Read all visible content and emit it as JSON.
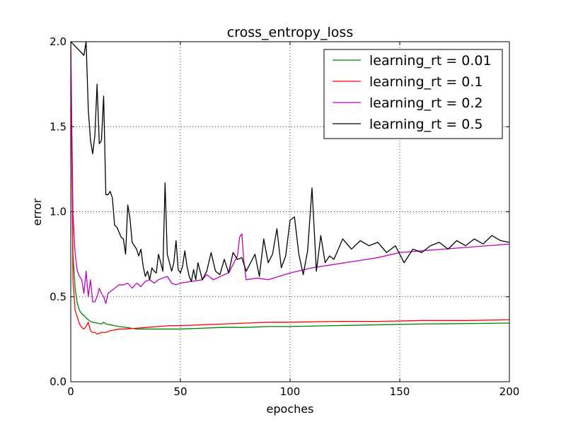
{
  "chart_data": {
    "type": "line",
    "title": "cross_entropy_loss",
    "xlabel": "epoches",
    "ylabel": "error",
    "xlim": [
      0,
      200
    ],
    "ylim": [
      0.0,
      2.0
    ],
    "xticks": [
      0,
      50,
      100,
      150,
      200
    ],
    "yticks": [
      0.0,
      0.5,
      1.0,
      1.5,
      2.0
    ],
    "xtick_labels": [
      "0",
      "50",
      "100",
      "150",
      "200"
    ],
    "ytick_labels": [
      "0.0",
      "0.5",
      "1.0",
      "1.5",
      "2.0"
    ],
    "grid": true,
    "legend_position": "top-right",
    "series": [
      {
        "name": "learning_rt = 0.01",
        "color": "#008000",
        "points": [
          [
            0,
            1.9
          ],
          [
            1,
            0.75
          ],
          [
            2,
            0.55
          ],
          [
            3,
            0.46
          ],
          [
            4,
            0.42
          ],
          [
            5,
            0.4
          ],
          [
            6,
            0.39
          ],
          [
            7,
            0.375
          ],
          [
            8,
            0.365
          ],
          [
            9,
            0.355
          ],
          [
            10,
            0.35
          ],
          [
            12,
            0.345
          ],
          [
            14,
            0.34
          ],
          [
            15,
            0.35
          ],
          [
            16,
            0.34
          ],
          [
            18,
            0.335
          ],
          [
            20,
            0.33
          ],
          [
            22,
            0.325
          ],
          [
            25,
            0.32
          ],
          [
            30,
            0.31
          ],
          [
            35,
            0.31
          ],
          [
            40,
            0.31
          ],
          [
            45,
            0.31
          ],
          [
            50,
            0.31
          ],
          [
            60,
            0.315
          ],
          [
            70,
            0.32
          ],
          [
            80,
            0.32
          ],
          [
            90,
            0.325
          ],
          [
            100,
            0.325
          ],
          [
            120,
            0.33
          ],
          [
            140,
            0.335
          ],
          [
            160,
            0.34
          ],
          [
            180,
            0.342
          ],
          [
            200,
            0.345
          ]
        ]
      },
      {
        "name": "learning_rt = 0.1",
        "color": "#ff0000",
        "points": [
          [
            0,
            2.0
          ],
          [
            1,
            0.6
          ],
          [
            2,
            0.42
          ],
          [
            3,
            0.38
          ],
          [
            4,
            0.34
          ],
          [
            5,
            0.32
          ],
          [
            6,
            0.31
          ],
          [
            7,
            0.325
          ],
          [
            8,
            0.35
          ],
          [
            9,
            0.3
          ],
          [
            10,
            0.29
          ],
          [
            11,
            0.29
          ],
          [
            12,
            0.28
          ],
          [
            13,
            0.285
          ],
          [
            14,
            0.29
          ],
          [
            16,
            0.29
          ],
          [
            18,
            0.3
          ],
          [
            20,
            0.305
          ],
          [
            22,
            0.31
          ],
          [
            25,
            0.31
          ],
          [
            30,
            0.315
          ],
          [
            35,
            0.32
          ],
          [
            40,
            0.325
          ],
          [
            45,
            0.33
          ],
          [
            50,
            0.33
          ],
          [
            60,
            0.335
          ],
          [
            70,
            0.34
          ],
          [
            80,
            0.345
          ],
          [
            90,
            0.35
          ],
          [
            100,
            0.35
          ],
          [
            120,
            0.355
          ],
          [
            140,
            0.355
          ],
          [
            160,
            0.36
          ],
          [
            180,
            0.36
          ],
          [
            200,
            0.365
          ]
        ]
      },
      {
        "name": "learning_rt = 0.2",
        "color": "#bf00bf",
        "points": [
          [
            0,
            2.0
          ],
          [
            1,
            1.0
          ],
          [
            2,
            0.75
          ],
          [
            3,
            0.65
          ],
          [
            4,
            0.62
          ],
          [
            5,
            0.6
          ],
          [
            6,
            0.52
          ],
          [
            7,
            0.65
          ],
          [
            8,
            0.5
          ],
          [
            9,
            0.6
          ],
          [
            10,
            0.47
          ],
          [
            11,
            0.47
          ],
          [
            12,
            0.5
          ],
          [
            13,
            0.55
          ],
          [
            14,
            0.52
          ],
          [
            15,
            0.5
          ],
          [
            16,
            0.46
          ],
          [
            17,
            0.52
          ],
          [
            18,
            0.53
          ],
          [
            20,
            0.55
          ],
          [
            22,
            0.57
          ],
          [
            24,
            0.57
          ],
          [
            26,
            0.58
          ],
          [
            28,
            0.55
          ],
          [
            30,
            0.58
          ],
          [
            32,
            0.56
          ],
          [
            34,
            0.59
          ],
          [
            36,
            0.6
          ],
          [
            38,
            0.58
          ],
          [
            40,
            0.6
          ],
          [
            42,
            0.61
          ],
          [
            44,
            0.62
          ],
          [
            46,
            0.58
          ],
          [
            48,
            0.57
          ],
          [
            50,
            0.58
          ],
          [
            55,
            0.59
          ],
          [
            60,
            0.6
          ],
          [
            62,
            0.63
          ],
          [
            65,
            0.6
          ],
          [
            70,
            0.63
          ],
          [
            72,
            0.64
          ],
          [
            74,
            0.69
          ],
          [
            76,
            0.74
          ],
          [
            77,
            0.85
          ],
          [
            78,
            0.87
          ],
          [
            79,
            0.7
          ],
          [
            80,
            0.6
          ],
          [
            85,
            0.61
          ],
          [
            90,
            0.6
          ],
          [
            95,
            0.62
          ],
          [
            100,
            0.64
          ],
          [
            110,
            0.67
          ],
          [
            120,
            0.69
          ],
          [
            130,
            0.71
          ],
          [
            140,
            0.73
          ],
          [
            150,
            0.76
          ],
          [
            160,
            0.77
          ],
          [
            170,
            0.78
          ],
          [
            180,
            0.79
          ],
          [
            190,
            0.8
          ],
          [
            200,
            0.81
          ]
        ]
      },
      {
        "name": "learning_rt = 0.5",
        "color": "#000000",
        "points": [
          [
            0,
            2.0
          ],
          [
            6,
            1.92
          ],
          [
            7,
            2.0
          ],
          [
            8,
            1.6
          ],
          [
            9,
            1.42
          ],
          [
            10,
            1.34
          ],
          [
            11,
            1.45
          ],
          [
            12,
            1.75
          ],
          [
            13,
            1.4
          ],
          [
            14,
            1.42
          ],
          [
            15,
            1.68
          ],
          [
            16,
            1.1
          ],
          [
            17,
            1.1
          ],
          [
            18,
            1.12
          ],
          [
            19,
            1.08
          ],
          [
            20,
            0.92
          ],
          [
            21,
            0.91
          ],
          [
            22,
            0.88
          ],
          [
            23,
            0.85
          ],
          [
            24,
            0.84
          ],
          [
            25,
            0.75
          ],
          [
            26,
            1.04
          ],
          [
            27,
            0.96
          ],
          [
            28,
            0.82
          ],
          [
            29,
            0.8
          ],
          [
            30,
            0.78
          ],
          [
            31,
            0.74
          ],
          [
            32,
            0.78
          ],
          [
            33,
            0.68
          ],
          [
            34,
            0.62
          ],
          [
            35,
            0.65
          ],
          [
            36,
            0.6
          ],
          [
            37,
            0.67
          ],
          [
            38,
            0.65
          ],
          [
            39,
            0.64
          ],
          [
            40,
            0.75
          ],
          [
            41,
            0.7
          ],
          [
            42,
            0.65
          ],
          [
            43,
            1.17
          ],
          [
            44,
            0.75
          ],
          [
            45,
            0.7
          ],
          [
            46,
            0.65
          ],
          [
            47,
            0.7
          ],
          [
            48,
            0.83
          ],
          [
            49,
            0.66
          ],
          [
            50,
            0.64
          ],
          [
            51,
            0.68
          ],
          [
            52,
            0.77
          ],
          [
            53,
            0.68
          ],
          [
            54,
            0.62
          ],
          [
            55,
            0.59
          ],
          [
            56,
            0.66
          ],
          [
            57,
            0.6
          ],
          [
            58,
            0.7
          ],
          [
            60,
            0.6
          ],
          [
            62,
            0.65
          ],
          [
            64,
            0.76
          ],
          [
            66,
            0.65
          ],
          [
            68,
            0.63
          ],
          [
            70,
            0.72
          ],
          [
            72,
            0.64
          ],
          [
            74,
            0.76
          ],
          [
            76,
            0.72
          ],
          [
            78,
            0.73
          ],
          [
            80,
            0.65
          ],
          [
            82,
            0.7
          ],
          [
            84,
            0.75
          ],
          [
            86,
            0.62
          ],
          [
            88,
            0.84
          ],
          [
            90,
            0.7
          ],
          [
            92,
            0.75
          ],
          [
            94,
            0.9
          ],
          [
            96,
            0.67
          ],
          [
            98,
            0.74
          ],
          [
            100,
            0.95
          ],
          [
            102,
            0.97
          ],
          [
            104,
            0.75
          ],
          [
            106,
            0.63
          ],
          [
            108,
            0.77
          ],
          [
            110,
            1.14
          ],
          [
            112,
            0.65
          ],
          [
            114,
            0.86
          ],
          [
            116,
            0.7
          ],
          [
            118,
            0.74
          ],
          [
            120,
            0.72
          ],
          [
            124,
            0.84
          ],
          [
            128,
            0.78
          ],
          [
            132,
            0.83
          ],
          [
            136,
            0.8
          ],
          [
            140,
            0.82
          ],
          [
            144,
            0.76
          ],
          [
            148,
            0.8
          ],
          [
            152,
            0.7
          ],
          [
            156,
            0.78
          ],
          [
            160,
            0.76
          ],
          [
            164,
            0.8
          ],
          [
            168,
            0.82
          ],
          [
            172,
            0.78
          ],
          [
            176,
            0.83
          ],
          [
            180,
            0.8
          ],
          [
            184,
            0.84
          ],
          [
            188,
            0.81
          ],
          [
            192,
            0.86
          ],
          [
            196,
            0.83
          ],
          [
            200,
            0.82
          ]
        ]
      }
    ]
  }
}
